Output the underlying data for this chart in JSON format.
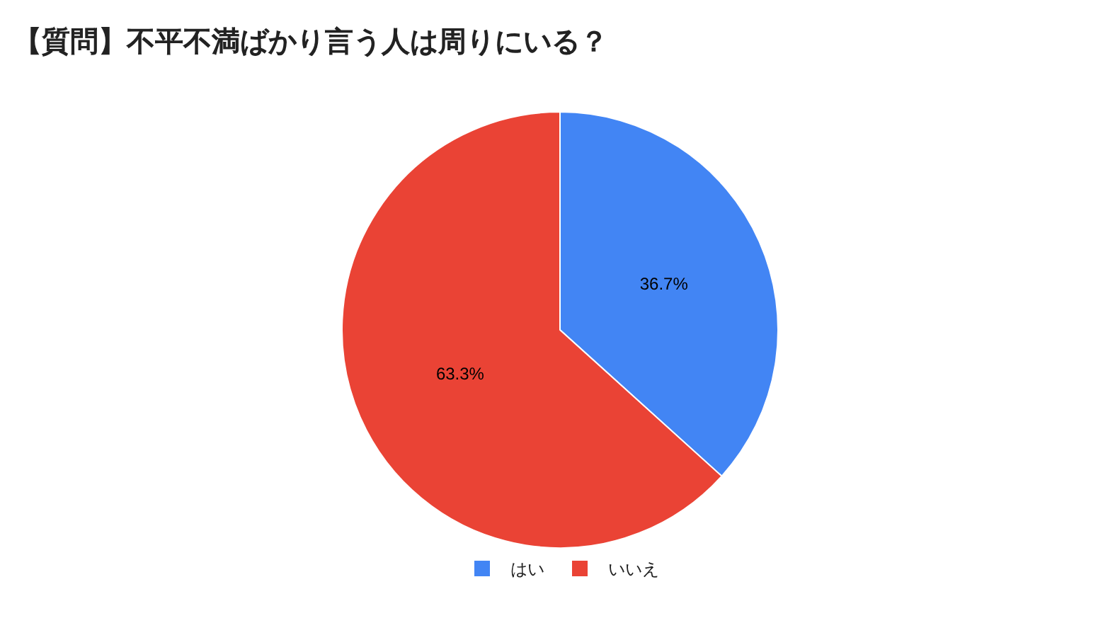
{
  "chart_data": {
    "type": "pie",
    "title": "【質問】不平不満ばかり言う人は周りにいる？",
    "categories": [
      "はい",
      "いいえ"
    ],
    "values": [
      36.7,
      63.3
    ],
    "colors": [
      "#4285f4",
      "#ea4335"
    ],
    "value_labels": [
      "36.7%",
      "63.3%"
    ],
    "legend": "bottom"
  }
}
